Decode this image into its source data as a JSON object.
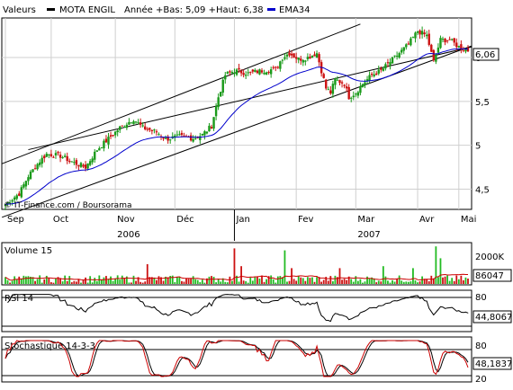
{
  "chart_data": {
    "type": "candlestick",
    "legend": {
      "label": "Valeurs",
      "symbol": "MOTA ENGIL",
      "range_text": "Année +Bas: 5,09 +Haut: 6,38",
      "ema_label": "EMA34",
      "symbol_color": "#000000",
      "ema_color": "#0000cc"
    },
    "credit": "© IT-Finance.com / Boursorama",
    "y_ticks": [
      "6",
      "5,5",
      "5",
      "4,5"
    ],
    "y_range": [
      4.27,
      6.45
    ],
    "last_value_label": "6,06",
    "last_value": 6.06,
    "months": [
      "Sep",
      "Oct",
      "Nov",
      "Déc",
      "Jan",
      "Fev",
      "Mar",
      "Avr",
      "Mai"
    ],
    "years": [
      "2006",
      "2007"
    ],
    "price_keypoints": [
      [
        0,
        4.33
      ],
      [
        6,
        4.45
      ],
      [
        10,
        4.65
      ],
      [
        15,
        4.82
      ],
      [
        18,
        4.9
      ],
      [
        24,
        4.88
      ],
      [
        30,
        4.8
      ],
      [
        35,
        4.75
      ],
      [
        40,
        4.95
      ],
      [
        44,
        5.05
      ],
      [
        50,
        5.2
      ],
      [
        56,
        5.3
      ],
      [
        60,
        5.2
      ],
      [
        66,
        5.15
      ],
      [
        70,
        5.07
      ],
      [
        76,
        5.1
      ],
      [
        82,
        5.08
      ],
      [
        86,
        5.12
      ],
      [
        90,
        5.22
      ],
      [
        93,
        5.55
      ],
      [
        96,
        5.8
      ],
      [
        100,
        5.85
      ],
      [
        106,
        5.82
      ],
      [
        112,
        5.85
      ],
      [
        118,
        5.87
      ],
      [
        121,
        6.0
      ],
      [
        124,
        6.05
      ],
      [
        128,
        5.98
      ],
      [
        132,
        6.0
      ],
      [
        136,
        6.05
      ],
      [
        140,
        5.65
      ],
      [
        142,
        5.6
      ],
      [
        144,
        5.75
      ],
      [
        148,
        5.7
      ],
      [
        150,
        5.55
      ],
      [
        153,
        5.6
      ],
      [
        156,
        5.7
      ],
      [
        160,
        5.8
      ],
      [
        164,
        5.85
      ],
      [
        168,
        5.95
      ],
      [
        172,
        6.05
      ],
      [
        176,
        6.15
      ],
      [
        180,
        6.3
      ],
      [
        184,
        6.25
      ],
      [
        187,
        5.95
      ],
      [
        190,
        6.2
      ],
      [
        194,
        6.2
      ],
      [
        198,
        6.12
      ],
      [
        202,
        6.08
      ]
    ],
    "channel_upper": [
      [
        4.79,
        4.95
      ],
      [
        6.38,
        6.12
      ]
    ],
    "channel_lower": [
      [
        4.18,
        3.86
      ],
      [
        5.85,
        6.13
      ]
    ],
    "volume": {
      "label": "Volume 15",
      "y_tick": "2000K",
      "value_label": "86047",
      "max": 2000000,
      "spikes": [
        [
          62,
          1000000
        ],
        [
          100,
          1800000
        ],
        [
          103,
          900000
        ],
        [
          122,
          1700000
        ],
        [
          125,
          800000
        ],
        [
          146,
          800000
        ],
        [
          165,
          900000
        ],
        [
          178,
          800000
        ],
        [
          188,
          1900000
        ],
        [
          190,
          1300000
        ]
      ]
    },
    "rsi": {
      "label": "RSI 14",
      "upper_tick": "80",
      "lower_tick": "20",
      "value_label": "44,8067",
      "upper": 80,
      "lower": 20,
      "last": 44.81
    },
    "stochastic": {
      "label": "Stochastique 14-3-3",
      "upper_tick": "80",
      "lower_tick": "20",
      "value_label": "48,1837",
      "upper": 80,
      "lower": 20,
      "k_color": "#cc0000",
      "d_color": "#000000"
    }
  }
}
